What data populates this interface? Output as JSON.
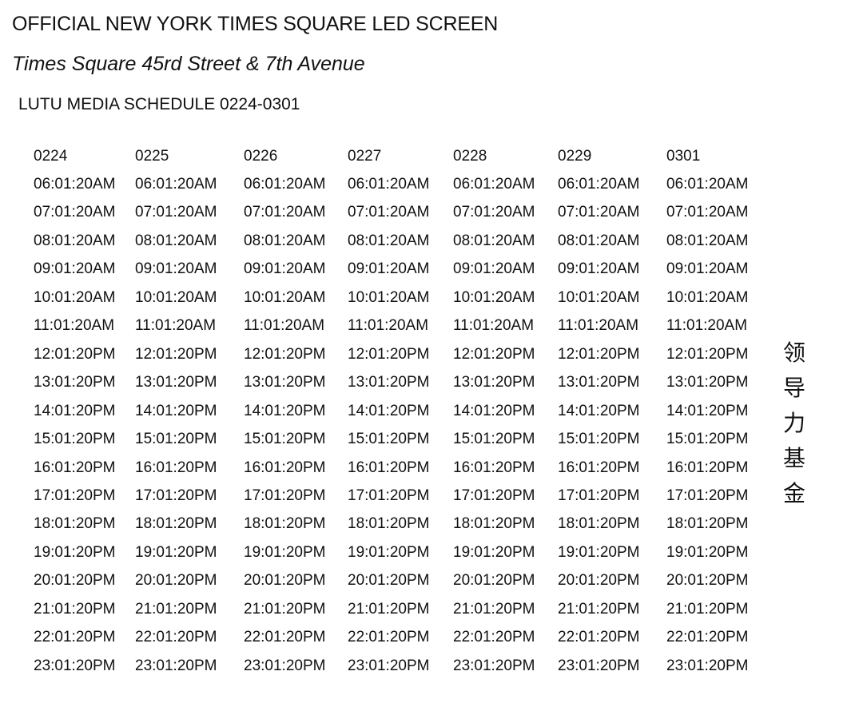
{
  "title": "OFFICIAL NEW YORK TIMES SQUARE LED SCREEN",
  "subtitle": "Times Square 45rd Street & 7th Avenue",
  "schedule_title": "LUTU MEDIA SCHEDULE 0224-0301",
  "schedule": {
    "dates": [
      "0224",
      "0225",
      "0226",
      "0227",
      "0228",
      "0229",
      "0301"
    ],
    "times": [
      "06:01:20AM",
      "07:01:20AM",
      "08:01:20AM",
      "09:01:20AM",
      "10:01:20AM",
      "11:01:20AM",
      "12:01:20PM",
      "13:01:20PM",
      "14:01:20PM",
      "15:01:20PM",
      "16:01:20PM",
      "17:01:20PM",
      "18:01:20PM",
      "19:01:20PM",
      "20:01:20PM",
      "21:01:20PM",
      "22:01:20PM",
      "23:01:20PM"
    ]
  },
  "side_text": [
    "领",
    "导",
    "力",
    "基",
    "金"
  ]
}
